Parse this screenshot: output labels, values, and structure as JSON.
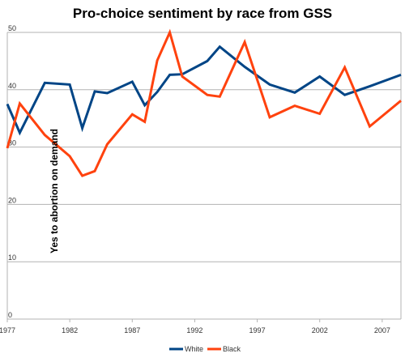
{
  "chart_data": {
    "type": "line",
    "title": "Pro-choice sentiment by race from GSS",
    "ylabel": "Yes to abortion on demand",
    "xlabel": "",
    "xlim": [
      1977,
      2008.5
    ],
    "ylim": [
      0,
      50
    ],
    "x_ticks": [
      "1977",
      "1982",
      "1987",
      "1992",
      "1997",
      "2002",
      "2007"
    ],
    "y_ticks": [
      "0",
      "10",
      "20",
      "30",
      "40",
      "50"
    ],
    "grid": "horizontal",
    "legend_position": "bottom",
    "series": [
      {
        "name": "White",
        "color": "#004586",
        "x": [
          1977,
          1978,
          1980,
          1982,
          1983,
          1984,
          1985,
          1987,
          1988,
          1989,
          1990,
          1991,
          1993,
          1994,
          1996,
          1998,
          2000,
          2002,
          2004,
          2006,
          2008.5
        ],
        "values": [
          37.5,
          32.5,
          41.2,
          40.9,
          33.3,
          39.7,
          39.4,
          41.4,
          37.3,
          39.6,
          42.6,
          42.7,
          45.0,
          47.5,
          44.0,
          40.9,
          39.5,
          42.3,
          39.1,
          40.6,
          42.6
        ]
      },
      {
        "name": "Black",
        "color": "#ff420e",
        "x": [
          1977,
          1978,
          1980,
          1982,
          1983,
          1984,
          1985,
          1987,
          1988,
          1989,
          1990,
          1991,
          1993,
          1994,
          1996,
          1998,
          2000,
          2002,
          2004,
          2006,
          2008.5
        ],
        "values": [
          29.8,
          37.6,
          32.1,
          28.4,
          25.0,
          25.8,
          30.5,
          35.7,
          34.4,
          45.1,
          50.0,
          42.3,
          39.1,
          38.8,
          48.3,
          35.2,
          37.2,
          35.8,
          43.9,
          33.6,
          38.1
        ]
      }
    ]
  }
}
